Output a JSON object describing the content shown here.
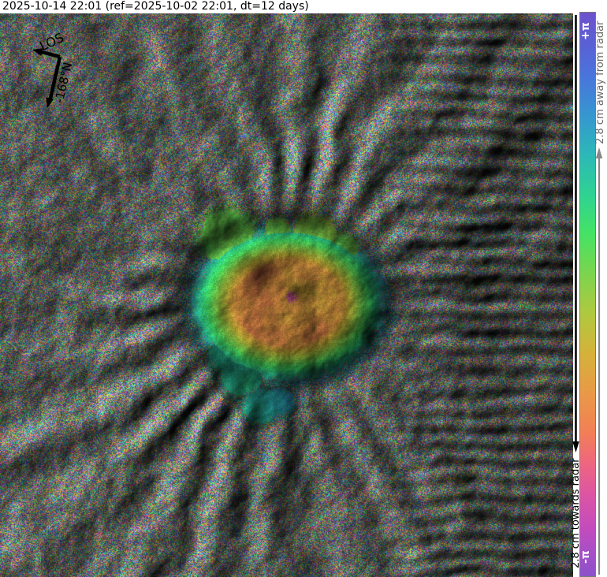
{
  "header": {
    "title": "2025-10-14 22:01 (ref=2025-10-02 22:01, dt=12 days)"
  },
  "compass": {
    "los_label": "LOS",
    "bearing_label": "-168°N"
  },
  "colorbar": {
    "top_label": "+π",
    "bottom_label": "-π",
    "away_label": "2.8 cm away from radar",
    "towards_label": "2.8 cm towards radar",
    "stops": [
      {
        "p": 0.0,
        "c": "#6E52CC"
      },
      {
        "p": 0.055,
        "c": "#5A60D4"
      },
      {
        "p": 0.111,
        "c": "#4A74DC"
      },
      {
        "p": 0.181,
        "c": "#3696D0"
      },
      {
        "p": 0.252,
        "c": "#2CB8B8"
      },
      {
        "p": 0.322,
        "c": "#2ED293"
      },
      {
        "p": 0.392,
        "c": "#44E364"
      },
      {
        "p": 0.463,
        "c": "#7CD44E"
      },
      {
        "p": 0.533,
        "c": "#AFC940"
      },
      {
        "p": 0.603,
        "c": "#D4B23A"
      },
      {
        "p": 0.674,
        "c": "#E99A47"
      },
      {
        "p": 0.744,
        "c": "#F27F55"
      },
      {
        "p": 0.8,
        "c": "#EE6680"
      },
      {
        "p": 0.856,
        "c": "#DC55A4"
      },
      {
        "p": 0.913,
        "c": "#C44CBC"
      },
      {
        "p": 0.955,
        "c": "#A94FC6"
      },
      {
        "p": 1.0,
        "c": "#8B51C9"
      }
    ],
    "arrow_up_color": "#888888",
    "arrow_down_color": "#000000"
  }
}
